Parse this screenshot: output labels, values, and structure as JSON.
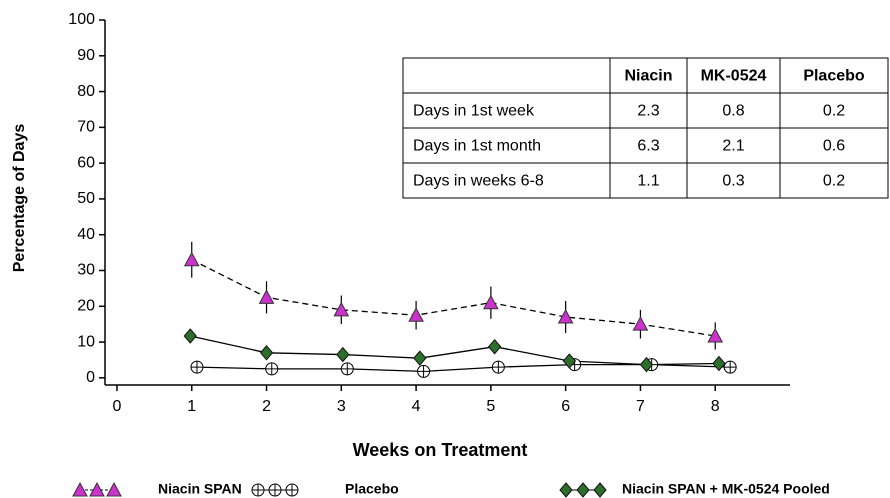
{
  "chart_data": {
    "type": "line",
    "ylabel": "Percentage of Days",
    "xlabel": "Weeks on Treatment",
    "xlim": [
      -0.16,
      9.0
    ],
    "xticks": [
      0,
      1,
      2,
      3,
      4,
      5,
      6,
      7,
      8
    ],
    "ylim": [
      -2,
      100
    ],
    "yticks": [
      0,
      10,
      20,
      30,
      40,
      50,
      60,
      70,
      80,
      90,
      100
    ],
    "series": [
      {
        "name": "Niacin SPAN",
        "color": "#cc33cc",
        "marker": "triangle",
        "dashed": true,
        "x": [
          1,
          2,
          3,
          4,
          5,
          6,
          7,
          8
        ],
        "values": [
          33,
          22.5,
          19,
          17.5,
          21,
          17,
          15,
          11.7
        ],
        "errors": [
          5,
          4.5,
          4,
          4,
          4.5,
          4.5,
          4,
          3.8
        ]
      },
      {
        "name": "Placebo",
        "color": "#000000",
        "marker": "circle-cross",
        "dashed": false,
        "x": [
          1.07,
          2.07,
          3.08,
          4.1,
          5.1,
          6.12,
          7.15,
          8.2
        ],
        "values": [
          3,
          2.5,
          2.5,
          1.8,
          3,
          3.7,
          3.7,
          3
        ]
      },
      {
        "name": "Niacin SPAN + MK-0524 Pooled",
        "color": "#2d6e2d",
        "marker": "diamond",
        "dashed": false,
        "x": [
          0.98,
          2,
          3.02,
          4.05,
          5.05,
          6.05,
          7.08,
          8.05
        ],
        "values": [
          11.7,
          7,
          6.5,
          5.5,
          8.7,
          4.7,
          3.7,
          4
        ]
      }
    ],
    "table": {
      "columns": [
        "Niacin",
        "MK-0524",
        "Placebo"
      ],
      "rows": [
        {
          "label": "Days in 1st week",
          "values": [
            2.3,
            0.8,
            0.2
          ]
        },
        {
          "label": "Days in 1st month",
          "values": [
            6.3,
            2.1,
            0.6
          ]
        },
        {
          "label": "Days in weeks 6-8",
          "values": [
            1.1,
            0.3,
            0.2
          ]
        }
      ]
    }
  }
}
